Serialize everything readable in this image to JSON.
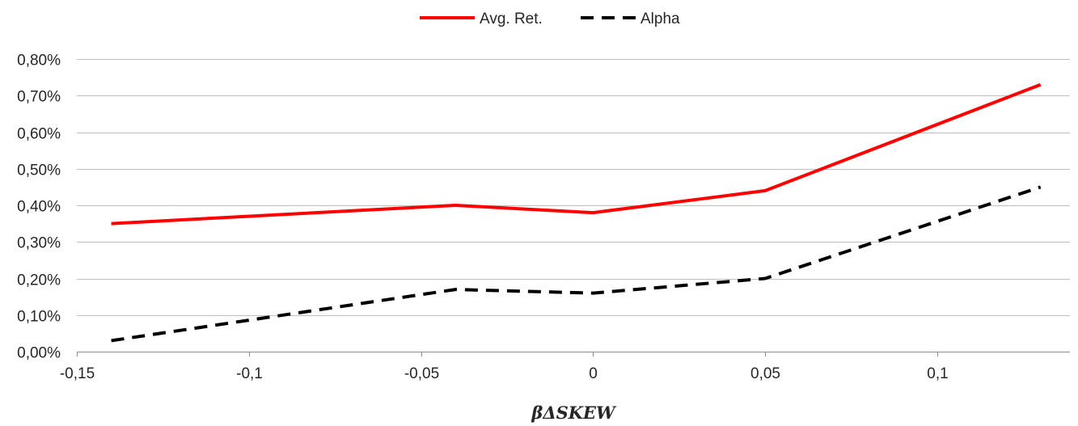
{
  "chart_data": {
    "type": "line",
    "title": "",
    "xlabel": "βΔSKEW",
    "ylabel": "",
    "x": [
      -0.14,
      -0.04,
      0,
      0.05,
      0.13
    ],
    "xlim": [
      -0.15,
      0.13
    ],
    "ylim": [
      0,
      0.008
    ],
    "x_ticks": [
      -0.15,
      -0.1,
      -0.05,
      0,
      0.05,
      0.1
    ],
    "x_tick_labels": [
      "-0,15",
      "-0,1",
      "-0,05",
      "0",
      "0,05",
      "0,1"
    ],
    "y_ticks": [
      0,
      0.001,
      0.002,
      0.003,
      0.004,
      0.005,
      0.006,
      0.007,
      0.008
    ],
    "y_tick_labels": [
      "0,00%",
      "0,10%",
      "0,20%",
      "0,30%",
      "0,40%",
      "0,50%",
      "0,60%",
      "0,70%",
      "0,80%"
    ],
    "grid": "horizontal",
    "legend_position": "top-center",
    "series": [
      {
        "name": "Avg. Ret.",
        "color": "#ff0000",
        "style": "solid",
        "values": [
          0.0035,
          0.004,
          0.0038,
          0.0044,
          0.0073
        ]
      },
      {
        "name": "Alpha",
        "color": "#000000",
        "style": "dashed",
        "values": [
          0.0003,
          0.0017,
          0.0016,
          0.002,
          0.0045
        ]
      }
    ]
  },
  "colors": {
    "grid": "#bfbfbf",
    "axis": "#8c8c8c",
    "text": "#262626"
  }
}
